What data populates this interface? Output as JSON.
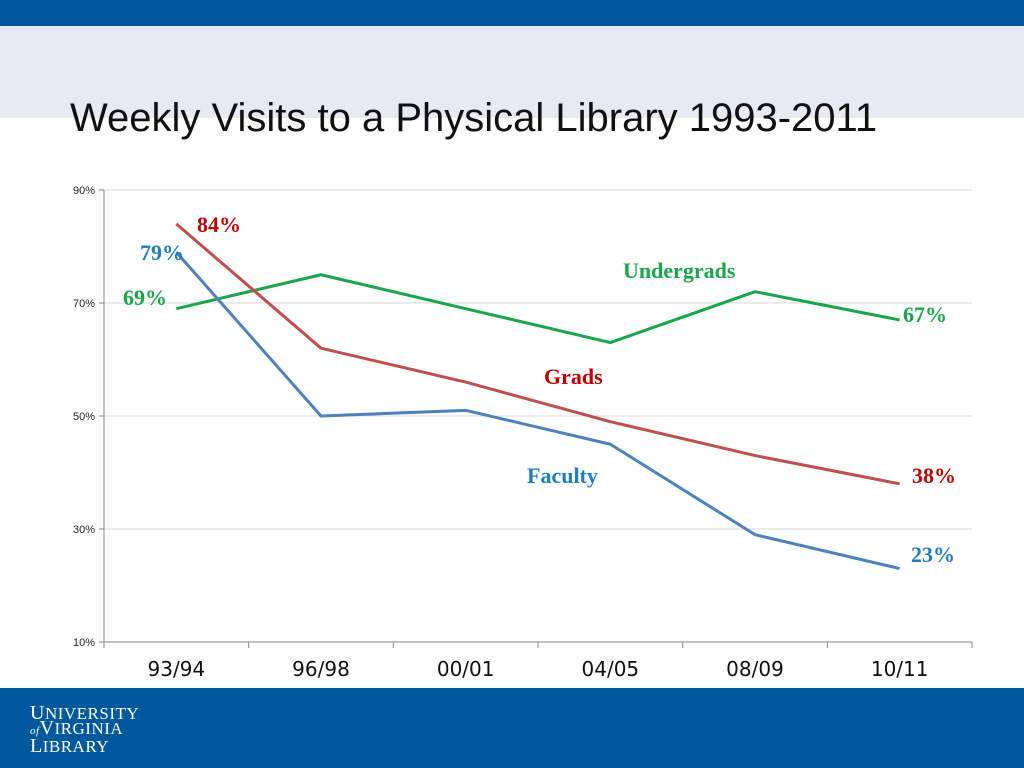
{
  "title": "Weekly Visits to a Physical Library 1993-2011",
  "logo": {
    "line1_cap": "U",
    "line1": "NIVERSITY",
    "line2_of": "of",
    "line2_cap": "V",
    "line2": "IRGINIA",
    "line3_cap": "L",
    "line3": "IBRARY"
  },
  "colors": {
    "top_bar": "#00599c",
    "header_band": "#e6eaf2",
    "footer": "#00599c"
  },
  "chart_data": {
    "type": "line",
    "title": "",
    "categories": [
      "93/94",
      "96/98",
      "00/01",
      "04/05",
      "08/09",
      "10/11"
    ],
    "ylim": [
      10,
      90
    ],
    "yticks": [
      "10%",
      "30%",
      "50%",
      "70%",
      "90%"
    ],
    "grid": true,
    "series": [
      {
        "name": "Undergrads",
        "color": "#1aa64a",
        "values": [
          69,
          75,
          69,
          63,
          72,
          67
        ]
      },
      {
        "name": "Grads",
        "color": "#c0504d",
        "values": [
          84,
          62,
          56,
          49,
          43,
          38
        ]
      },
      {
        "name": "Faculty",
        "color": "#4f81bd",
        "values": [
          79,
          50,
          51,
          45,
          29,
          23
        ]
      }
    ],
    "annotations": [
      {
        "text": "84%",
        "color": "#c00000"
      },
      {
        "text": "79%",
        "color": "#1f7ec0"
      },
      {
        "text": "69%",
        "color": "#1aa64a"
      },
      {
        "text": "Undergrads",
        "color": "#1aa64a"
      },
      {
        "text": "67%",
        "color": "#1aa64a"
      },
      {
        "text": "Grads",
        "color": "#c00000"
      },
      {
        "text": "Faculty",
        "color": "#1f7ec0"
      },
      {
        "text": "38%",
        "color": "#c00000"
      },
      {
        "text": "23%",
        "color": "#1f7ec0"
      }
    ]
  }
}
